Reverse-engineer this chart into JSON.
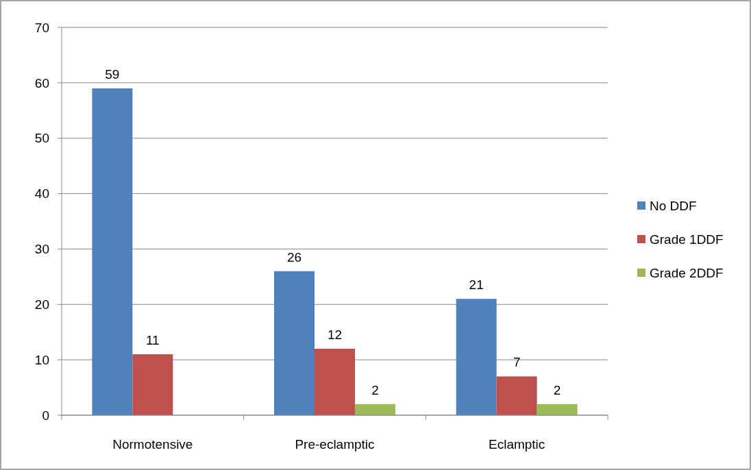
{
  "chart_data": {
    "type": "bar",
    "categories": [
      "Normotensive",
      "Pre-eclamptic",
      "Eclamptic"
    ],
    "series": [
      {
        "name": "No DDF",
        "color": "#4f81bd",
        "values": [
          59,
          26,
          21
        ]
      },
      {
        "name": "Grade 1DDF",
        "color": "#c0504d",
        "values": [
          11,
          12,
          7
        ]
      },
      {
        "name": "Grade 2DDF",
        "color": "#9bbb59",
        "values": [
          null,
          2,
          2
        ]
      }
    ],
    "ylim": [
      0,
      70
    ],
    "yticks": [
      0,
      10,
      20,
      30,
      40,
      50,
      60,
      70
    ],
    "grid": "y",
    "legend": "right",
    "data_labels": true
  }
}
